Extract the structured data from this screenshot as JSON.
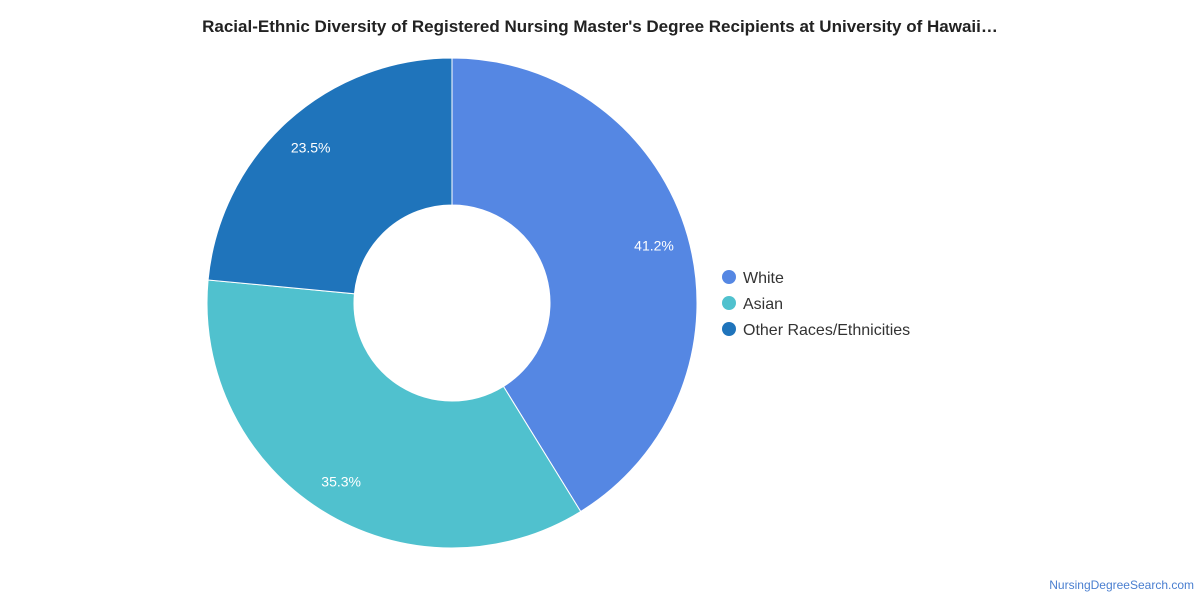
{
  "chart_data": {
    "type": "pie",
    "donut": true,
    "title": "Racial-Ethnic Diversity of Registered Nursing Master's Degree Recipients at University of Hawaii…",
    "categories": [
      "White",
      "Asian",
      "Other Races/Ethnicities"
    ],
    "values": [
      41.2,
      35.3,
      23.5
    ],
    "labels": [
      "41.2%",
      "35.3%",
      "23.5%"
    ],
    "colors": [
      "#5587e3",
      "#50c1ce",
      "#1f74bb"
    ],
    "legend_position": "right"
  },
  "footer": {
    "credit": "NursingDegreeSearch.com"
  }
}
